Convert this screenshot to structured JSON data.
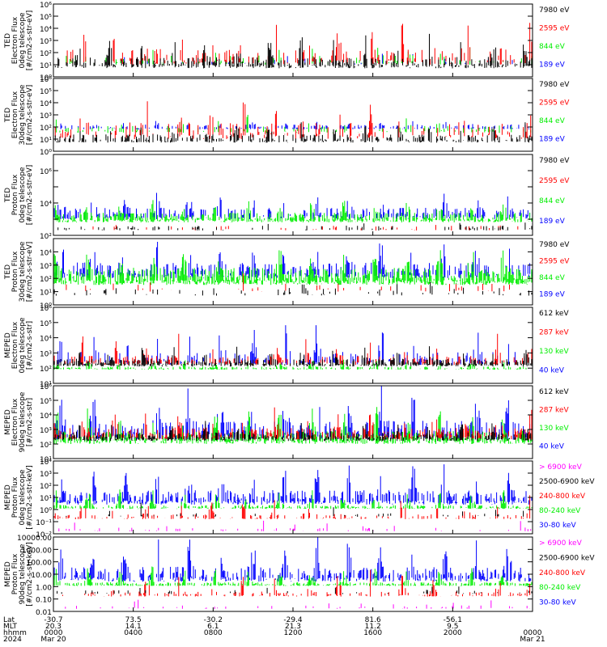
{
  "chart_data": [
    {
      "type": "line",
      "ylabel": [
        "TED",
        "Electron Flux",
        "0deg telescope",
        "[#/cm2-s-str-eV]"
      ],
      "ytick_labels": [
        "10⁰",
        "10¹",
        "10²",
        "10³",
        "10⁴",
        "10⁵",
        "10⁶"
      ],
      "yscale": "log",
      "ylim_exp": [
        0,
        6
      ],
      "series": [
        {
          "name": "7980 eV",
          "color": "#000000",
          "base": 0.7,
          "spread": 0.9,
          "peak": 2.8,
          "density": 0.55
        },
        {
          "name": "2595 eV",
          "color": "#ff0000",
          "base": 1.0,
          "spread": 1.3,
          "peak": 4.8,
          "density": 0.25
        },
        {
          "name": "844 eV",
          "color": "#00ee00",
          "base": 1.0,
          "spread": 0.8,
          "peak": 2.2,
          "density": 0.15
        },
        {
          "name": "189 eV",
          "color": "#0000ff",
          "base": 1.0,
          "spread": 0.5,
          "peak": 1.8,
          "density": 0.05
        }
      ]
    },
    {
      "type": "line",
      "ylabel": [
        "TED",
        "Electron Flux",
        "30deg telescope",
        "[#/cm2-s-str-eV]"
      ],
      "ytick_labels": [
        "10⁰",
        "10¹",
        "10²",
        "10³",
        "10⁴",
        "10⁵",
        "10⁶"
      ],
      "yscale": "log",
      "ylim_exp": [
        0,
        6
      ],
      "series": [
        {
          "name": "7980 eV",
          "color": "#000000",
          "base": 0.7,
          "spread": 0.7,
          "peak": 2.0,
          "density": 0.45
        },
        {
          "name": "2595 eV",
          "color": "#ff0000",
          "base": 1.0,
          "spread": 1.4,
          "peak": 3.9,
          "density": 0.25
        },
        {
          "name": "844 eV",
          "color": "#00ee00",
          "base": 1.5,
          "spread": 0.6,
          "peak": 2.6,
          "density": 0.2
        },
        {
          "name": "189 eV",
          "color": "#0000ff",
          "base": 1.8,
          "spread": 0.4,
          "peak": 2.3,
          "density": 0.35
        }
      ]
    },
    {
      "type": "line",
      "ylabel": [
        "TED",
        "Proton Flux",
        "0deg telescope",
        "[#/cm2-s-str-eV]"
      ],
      "ytick_labels": [
        "10²",
        "",
        "10⁴",
        "",
        "10⁶",
        ""
      ],
      "yscale": "log",
      "ylim_exp": [
        2,
        7
      ],
      "series": [
        {
          "name": "7980 eV",
          "color": "#000000",
          "base": 2.3,
          "spread": 0.3,
          "peak": 2.8,
          "density": 0.15
        },
        {
          "name": "2595 eV",
          "color": "#ff0000",
          "base": 2.3,
          "spread": 0.3,
          "peak": 2.8,
          "density": 0.08
        },
        {
          "name": "844 eV",
          "color": "#00ee00",
          "base": 2.8,
          "spread": 0.6,
          "peak": 3.8,
          "density": 0.7
        },
        {
          "name": "189 eV",
          "color": "#0000ff",
          "base": 3.0,
          "spread": 0.7,
          "peak": 4.2,
          "density": 0.5
        }
      ]
    },
    {
      "type": "line",
      "ylabel": [
        "TED",
        "Proton Flux",
        "30deg telescope",
        "[#/cm2-s-str-eV]"
      ],
      "ytick_labels": [
        "10⁰",
        "10¹",
        "10²",
        "10³",
        "10⁴",
        ""
      ],
      "yscale": "log",
      "ylim_exp": [
        0,
        5
      ],
      "series": [
        {
          "name": "7980 eV",
          "color": "#000000",
          "base": 0.7,
          "spread": 0.6,
          "peak": 1.5,
          "density": 0.12
        },
        {
          "name": "2595 eV",
          "color": "#ff0000",
          "base": 1.0,
          "spread": 0.6,
          "peak": 2.0,
          "density": 0.08
        },
        {
          "name": "844 eV",
          "color": "#00ee00",
          "base": 1.5,
          "spread": 1.3,
          "peak": 3.5,
          "density": 0.85
        },
        {
          "name": "189 eV",
          "color": "#0000ff",
          "base": 2.0,
          "spread": 1.2,
          "peak": 4.0,
          "density": 0.55
        }
      ]
    },
    {
      "type": "line",
      "ylabel": [
        "MEPED",
        "Electron Flux",
        "0deg telescope",
        "[#/cm2-s-str]"
      ],
      "ytick_labels": [
        "10¹",
        "10²",
        "10³",
        "10⁴",
        "10⁵",
        "10⁶"
      ],
      "yscale": "log",
      "ylim_exp": [
        1,
        6
      ],
      "series": [
        {
          "name": "612 keV",
          "color": "#000000",
          "base": 2.1,
          "spread": 0.5,
          "peak": 3.2,
          "density": 0.6
        },
        {
          "name": "287 keV",
          "color": "#ff0000",
          "base": 2.2,
          "spread": 0.6,
          "peak": 4.0,
          "density": 0.4
        },
        {
          "name": "130 keV",
          "color": "#00ee00",
          "base": 1.9,
          "spread": 0.2,
          "peak": 2.5,
          "density": 0.5
        },
        {
          "name": "40 keV",
          "color": "#0000ff",
          "base": 2.2,
          "spread": 0.9,
          "peak": 5.0,
          "density": 0.35
        }
      ]
    },
    {
      "type": "line",
      "ylabel": [
        "MEPED",
        "Electron Flux",
        "90deg telescope",
        "[#/cm2-s-str]"
      ],
      "ytick_labels": [
        "10¹",
        "10²",
        "10³",
        "10⁴",
        "10⁵",
        "10⁶"
      ],
      "yscale": "log",
      "ylim_exp": [
        1,
        6
      ],
      "series": [
        {
          "name": "612 keV",
          "color": "#000000",
          "base": 2.2,
          "spread": 0.6,
          "peak": 3.3,
          "density": 0.6
        },
        {
          "name": "287 keV",
          "color": "#ff0000",
          "base": 2.3,
          "spread": 0.8,
          "peak": 4.2,
          "density": 0.5
        },
        {
          "name": "130 keV",
          "color": "#00ee00",
          "base": 2.0,
          "spread": 0.9,
          "peak": 4.0,
          "density": 0.6
        },
        {
          "name": "40 keV",
          "color": "#0000ff",
          "base": 2.3,
          "spread": 1.3,
          "peak": 5.3,
          "density": 0.55
        }
      ]
    },
    {
      "type": "line",
      "ylabel": [
        "MEPED",
        "Proton Flux",
        "0deg telescope",
        "[#/cm2-s-str-keV]"
      ],
      "ytick_labels": [
        "10⁻²",
        "10⁻¹",
        "10⁰",
        "10¹",
        "10²",
        "10³",
        "10⁴"
      ],
      "yscale": "log",
      "ylim_exp": [
        -2,
        4
      ],
      "series": [
        {
          "name": "> 6900 keV",
          "color": "#ff00ff",
          "base": -1.8,
          "spread": 0.3,
          "peak": -0.6,
          "density": 0.1
        },
        {
          "name": "2500-6900 keV",
          "color": "#000000",
          "base": -0.6,
          "spread": 0.3,
          "peak": 0.4,
          "density": 0.08
        },
        {
          "name": "240-800 keV",
          "color": "#ff0000",
          "base": -0.8,
          "spread": 0.4,
          "peak": 1.3,
          "density": 0.3
        },
        {
          "name": "80-240 keV",
          "color": "#00ee00",
          "base": 0.05,
          "spread": 0.3,
          "peak": 1.5,
          "density": 0.6
        },
        {
          "name": "30-80 keV",
          "color": "#0000ff",
          "base": 0.4,
          "spread": 1.2,
          "peak": 3.3,
          "density": 0.65
        }
      ]
    },
    {
      "type": "line",
      "ylabel": [
        "MEPED",
        "Proton Flux",
        "90deg telescope",
        "[#/cm2-s-str-keV]"
      ],
      "ytick_labels": [
        "0.01",
        "0.10",
        "1.00",
        "10.00",
        "100.00",
        "1000.00",
        "10000.00"
      ],
      "yscale": "log",
      "ylim_exp": [
        -2,
        4
      ],
      "series": [
        {
          "name": "> 6900 keV",
          "color": "#ff00ff",
          "base": -1.8,
          "spread": 0.3,
          "peak": -0.7,
          "density": 0.1
        },
        {
          "name": "2500-6900 keV",
          "color": "#000000",
          "base": -0.6,
          "spread": 0.3,
          "peak": 0.4,
          "density": 0.08
        },
        {
          "name": "240-800 keV",
          "color": "#ff0000",
          "base": -0.8,
          "spread": 0.4,
          "peak": 1.2,
          "density": 0.3
        },
        {
          "name": "80-240 keV",
          "color": "#00ee00",
          "base": 0.05,
          "spread": 0.3,
          "peak": 1.4,
          "density": 0.6
        },
        {
          "name": "30-80 keV",
          "color": "#0000ff",
          "base": 0.4,
          "spread": 1.2,
          "peak": 3.4,
          "density": 0.65
        }
      ]
    }
  ],
  "xaxis": {
    "row_labels": [
      "Lat",
      "MLT",
      "hhmm",
      "2024"
    ],
    "ticks": [
      {
        "hours": 0,
        "lat": "-30.7",
        "mlt": "20.3",
        "hhmm": "0000",
        "date": "Mar 20"
      },
      {
        "hours": 4,
        "lat": "73.5",
        "mlt": "14.1",
        "hhmm": "0400",
        "date": ""
      },
      {
        "hours": 8,
        "lat": "-30.2",
        "mlt": "6.1",
        "hhmm": "0800",
        "date": ""
      },
      {
        "hours": 12,
        "lat": "-29.4",
        "mlt": "21.3",
        "hhmm": "1200",
        "date": ""
      },
      {
        "hours": 16,
        "lat": "81.6",
        "mlt": "11.2",
        "hhmm": "1600",
        "date": ""
      },
      {
        "hours": 20,
        "lat": "-56.1",
        "mlt": "9.5",
        "hhmm": "2000",
        "date": ""
      },
      {
        "hours": 24,
        "lat": "",
        "mlt": "",
        "hhmm": "0000",
        "date": "Mar 21"
      }
    ],
    "xlim_hours": [
      0,
      24
    ]
  }
}
